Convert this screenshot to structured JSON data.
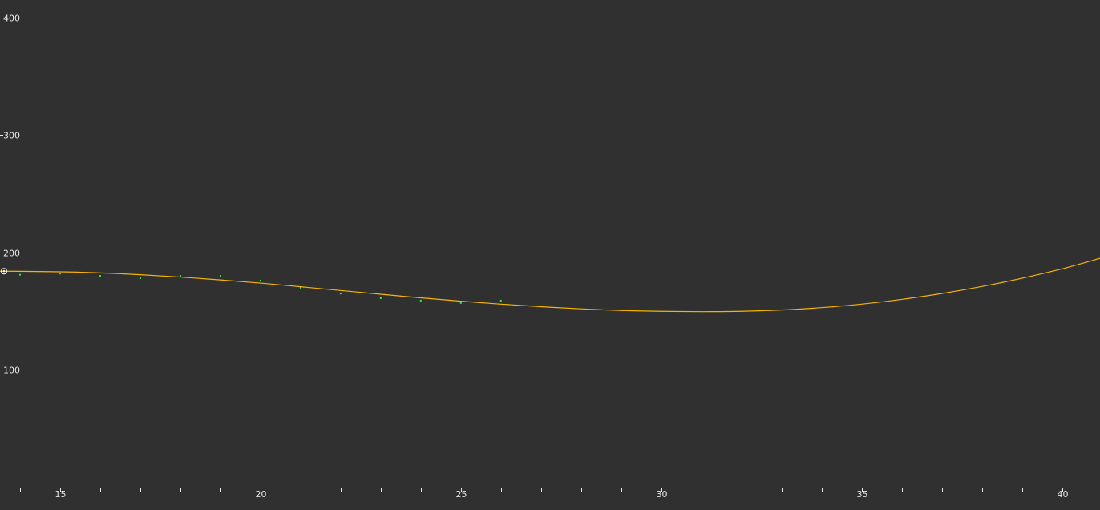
{
  "chart_data": {
    "type": "scatter",
    "title": "",
    "xlabel": "",
    "ylabel": "",
    "xlim": [
      13.5,
      40.95
    ],
    "ylim": [
      0,
      412
    ],
    "x_ticks_major": [
      15,
      20,
      25,
      30,
      35,
      40
    ],
    "x_ticks_minor": [
      14,
      16,
      17,
      18,
      19,
      21,
      22,
      23,
      24,
      26,
      27,
      28,
      29,
      31,
      32,
      33,
      34,
      36,
      37,
      38,
      39
    ],
    "y_ticks": [
      100,
      200,
      300,
      400
    ],
    "grid": false,
    "series": [
      {
        "type": "scatter",
        "color": "#33ee33",
        "x": [
          14,
          15,
          16,
          17,
          18,
          19,
          20,
          21,
          22,
          23,
          24,
          25,
          26
        ],
        "y": [
          181,
          182,
          180,
          178,
          180,
          180,
          176,
          170,
          165,
          161,
          159,
          157,
          159
        ]
      },
      {
        "type": "line",
        "color": "#f5b400",
        "x": [
          13.5,
          14,
          15,
          16,
          17,
          18,
          19,
          20,
          21,
          22,
          23,
          24,
          25,
          26,
          27,
          28,
          29,
          30,
          31,
          32,
          33,
          34,
          35,
          36,
          37,
          38,
          39,
          40,
          40.95
        ],
        "y": [
          184,
          183.9,
          183.5,
          182.6,
          181,
          179,
          176.6,
          173.9,
          170.8,
          167.6,
          164.4,
          161.3,
          158.5,
          156,
          153.8,
          152,
          150.6,
          149.9,
          149.6,
          149.9,
          151,
          153,
          156,
          160,
          165,
          171,
          178,
          186,
          195
        ]
      }
    ],
    "cursor": {
      "x": 13.6,
      "y": 184
    }
  }
}
